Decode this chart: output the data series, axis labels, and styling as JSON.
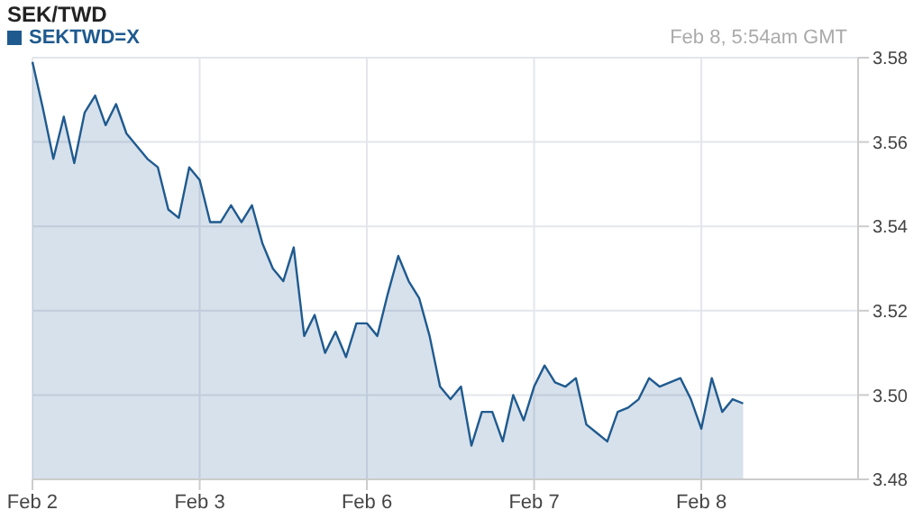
{
  "chart_data": {
    "type": "area",
    "title": "SEK/TWD",
    "annotations": [
      "Feb 8, 5:54am GMT"
    ],
    "categories": [
      "Feb 2",
      null,
      null,
      null,
      null,
      null,
      null,
      null,
      null,
      null,
      null,
      null,
      null,
      null,
      null,
      null,
      "Feb 3",
      null,
      null,
      null,
      null,
      null,
      null,
      null,
      null,
      null,
      null,
      null,
      null,
      null,
      null,
      null,
      "Feb 6",
      null,
      null,
      null,
      null,
      null,
      null,
      null,
      null,
      null,
      null,
      null,
      null,
      null,
      null,
      null,
      "Feb 7",
      null,
      null,
      null,
      null,
      null,
      null,
      null,
      null,
      null,
      null,
      null,
      null,
      null,
      null,
      null,
      "Feb 8",
      null,
      null,
      null,
      null,
      null,
      null,
      null,
      null,
      null,
      null,
      null,
      null,
      null,
      null,
      null
    ],
    "series": [
      {
        "name": "SEKTWD=X",
        "color": "#1f5a8f",
        "values": [
          3.579,
          3.568,
          3.556,
          3.566,
          3.555,
          3.567,
          3.571,
          3.564,
          3.569,
          3.562,
          3.559,
          3.556,
          3.554,
          3.544,
          3.542,
          3.554,
          3.551,
          3.541,
          3.541,
          3.545,
          3.541,
          3.545,
          3.536,
          3.53,
          3.527,
          3.535,
          3.514,
          3.519,
          3.51,
          3.515,
          3.509,
          3.517,
          3.517,
          3.514,
          3.524,
          3.533,
          3.527,
          3.523,
          3.514,
          3.502,
          3.499,
          3.502,
          3.488,
          3.496,
          3.496,
          3.489,
          3.5,
          3.494,
          3.502,
          3.507,
          3.503,
          3.502,
          3.504,
          3.493,
          3.491,
          3.489,
          3.496,
          3.497,
          3.499,
          3.504,
          3.502,
          3.503,
          3.504,
          3.499,
          3.492,
          3.504,
          3.496,
          3.499,
          3.498,
          null,
          null,
          null,
          null,
          null,
          null,
          null,
          null,
          null,
          null,
          null
        ]
      }
    ],
    "ylim": [
      3.48,
      3.58
    ],
    "yticks": [
      3.48,
      {
        "value": 3.5,
        "label": "3.50"
      },
      3.52,
      3.54,
      3.56,
      3.58
    ],
    "grid": true,
    "legend": "top left"
  }
}
